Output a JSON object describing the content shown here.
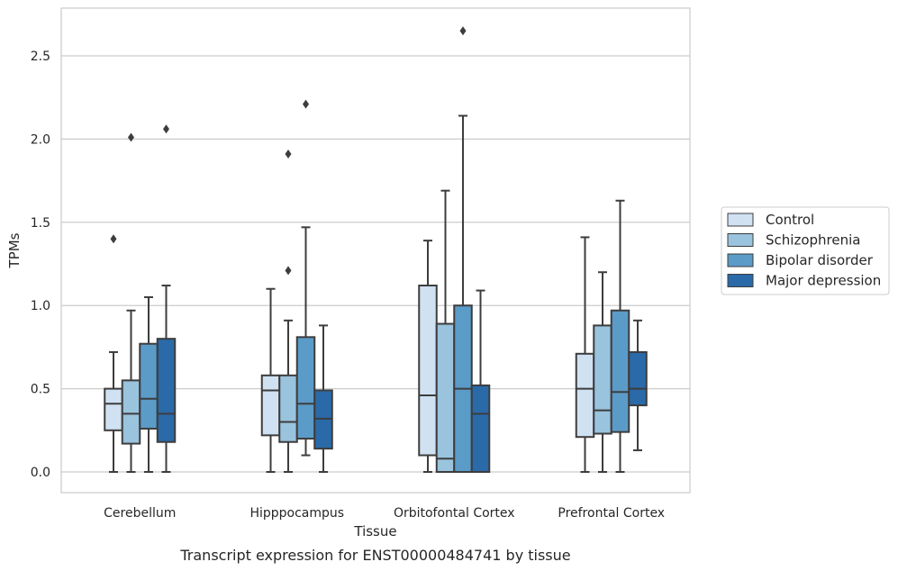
{
  "chart_data": {
    "type": "box",
    "xlabel": "Tissue",
    "ylabel": "TPMs",
    "caption": "Transcript expression for ENST00000484741 by tissue",
    "ylim": [
      -0.13,
      2.79
    ],
    "yticks": [
      "0.0",
      "0.5",
      "1.0",
      "1.5",
      "2.0",
      "2.5"
    ],
    "ytick_values": [
      0,
      0.5,
      1.0,
      1.5,
      2.0,
      2.5
    ],
    "grid": "horizontal",
    "legend_position": "right",
    "categories": [
      "Cerebellum",
      "Hipppocampus",
      "Orbitofontal Cortex",
      "Prefrontal Cortex"
    ],
    "series": [
      {
        "name": "Control",
        "color": "#d0e1f2",
        "boxes": [
          {
            "whislo": 0.0,
            "q1": 0.25,
            "med": 0.41,
            "q3": 0.5,
            "whishi": 0.72,
            "fliers": [
              1.4
            ]
          },
          {
            "whislo": 0.0,
            "q1": 0.22,
            "med": 0.49,
            "q3": 0.58,
            "whishi": 1.1,
            "fliers": []
          },
          {
            "whislo": 0.0,
            "q1": 0.1,
            "med": 0.46,
            "q3": 1.12,
            "whishi": 1.39,
            "fliers": []
          },
          {
            "whislo": 0.0,
            "q1": 0.21,
            "med": 0.5,
            "q3": 0.71,
            "whishi": 1.41,
            "fliers": []
          }
        ]
      },
      {
        "name": "Schizophrenia",
        "color": "#9ac3dd",
        "boxes": [
          {
            "whislo": 0.0,
            "q1": 0.17,
            "med": 0.35,
            "q3": 0.55,
            "whishi": 0.97,
            "fliers": [
              2.01
            ]
          },
          {
            "whislo": 0.0,
            "q1": 0.18,
            "med": 0.3,
            "q3": 0.58,
            "whishi": 0.91,
            "fliers": [
              1.21,
              1.91
            ]
          },
          {
            "whislo": 0.0,
            "q1": 0.0,
            "med": 0.08,
            "q3": 0.89,
            "whishi": 1.69,
            "fliers": []
          },
          {
            "whislo": 0.0,
            "q1": 0.23,
            "med": 0.37,
            "q3": 0.88,
            "whishi": 1.2,
            "fliers": []
          }
        ]
      },
      {
        "name": "Bipolar disorder",
        "color": "#5b9bc8",
        "boxes": [
          {
            "whislo": 0.0,
            "q1": 0.26,
            "med": 0.44,
            "q3": 0.77,
            "whishi": 1.05,
            "fliers": []
          },
          {
            "whislo": 0.1,
            "q1": 0.2,
            "med": 0.41,
            "q3": 0.81,
            "whishi": 1.47,
            "fliers": [
              2.21
            ]
          },
          {
            "whislo": 0.0,
            "q1": 0.0,
            "med": 0.5,
            "q3": 1.0,
            "whishi": 2.14,
            "fliers": [
              2.65
            ]
          },
          {
            "whislo": 0.0,
            "q1": 0.24,
            "med": 0.48,
            "q3": 0.97,
            "whishi": 1.63,
            "fliers": []
          }
        ]
      },
      {
        "name": "Major depression",
        "color": "#2a6aa9",
        "boxes": [
          {
            "whislo": 0.0,
            "q1": 0.18,
            "med": 0.35,
            "q3": 0.8,
            "whishi": 1.12,
            "fliers": [
              2.06
            ]
          },
          {
            "whislo": 0.0,
            "q1": 0.14,
            "med": 0.32,
            "q3": 0.49,
            "whishi": 0.88,
            "fliers": []
          },
          {
            "whislo": 0.0,
            "q1": 0.0,
            "med": 0.35,
            "q3": 0.52,
            "whishi": 1.09,
            "fliers": []
          },
          {
            "whislo": 0.13,
            "q1": 0.4,
            "med": 0.5,
            "q3": 0.72,
            "whishi": 0.91,
            "fliers": []
          }
        ]
      }
    ]
  }
}
